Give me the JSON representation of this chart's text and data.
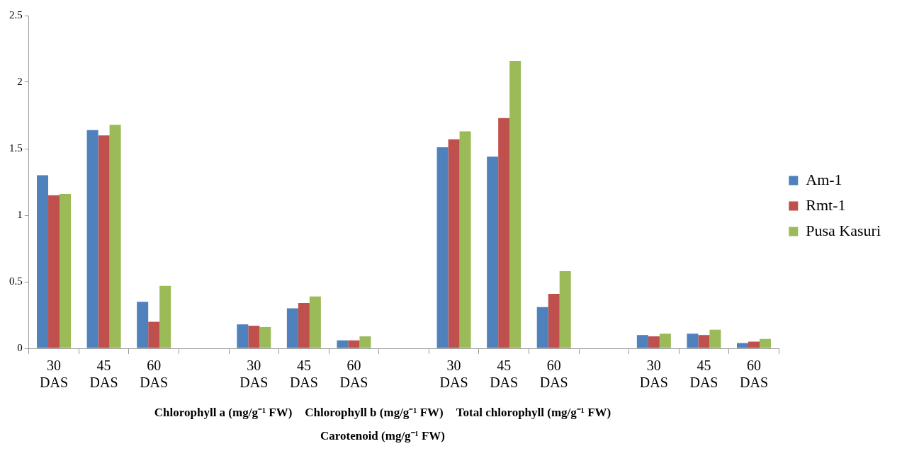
{
  "chart_data": {
    "type": "bar",
    "categories": [
      "30 DAS",
      "45 DAS",
      "60 DAS",
      null,
      "30 DAS",
      "45 DAS",
      "60 DAS",
      null,
      "30 DAS",
      "45 DAS",
      "60 DAS",
      null,
      "30 DAS",
      "45 DAS",
      "60 DAS"
    ],
    "series": [
      {
        "name": "Am-1",
        "color": "#4f81bd",
        "values": [
          1.3,
          1.64,
          0.35,
          null,
          0.18,
          0.3,
          0.06,
          null,
          1.51,
          1.44,
          0.31,
          null,
          0.1,
          0.11,
          0.04
        ]
      },
      {
        "name": "Rmt-1",
        "color": "#c0504d",
        "values": [
          1.15,
          1.6,
          0.2,
          null,
          0.17,
          0.34,
          0.06,
          null,
          1.57,
          1.73,
          0.41,
          null,
          0.09,
          0.1,
          0.05
        ]
      },
      {
        "name": "Pusa Kasuri",
        "color": "#9bbb59",
        "values": [
          1.16,
          1.68,
          0.47,
          null,
          0.16,
          0.39,
          0.09,
          null,
          1.63,
          2.16,
          0.58,
          null,
          0.11,
          0.14,
          0.07
        ]
      }
    ],
    "ylim": [
      0,
      2.5
    ],
    "yticks": [
      0,
      0.5,
      1,
      1.5,
      2,
      2.5
    ],
    "legend": "right",
    "annotations": [
      "Chlorophyll a (mg/g⁻¹ FW)",
      "Chlorophyll b (mg/g⁻¹ FW)",
      "Total chlorophyll  (mg/g⁻¹ FW)",
      "Carotenoid (mg/g⁻¹ FW)"
    ]
  }
}
